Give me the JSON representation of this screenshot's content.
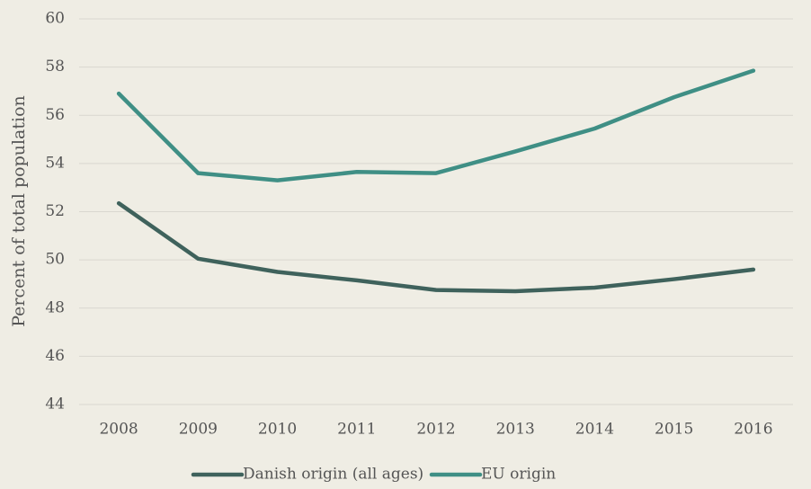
{
  "chart_data": {
    "type": "line",
    "y_label": "Percent of total population",
    "categories": [
      "2008",
      "2009",
      "2010",
      "2011",
      "2012",
      "2013",
      "2014",
      "2015",
      "2016"
    ],
    "series": [
      {
        "name": "Danish origin (all ages)",
        "color": "#3f625c",
        "values": [
          52.35,
          50.05,
          49.5,
          49.15,
          48.75,
          48.7,
          48.85,
          49.2,
          49.6
        ]
      },
      {
        "name": "EU origin",
        "color": "#3f8f85",
        "values": [
          56.9,
          53.6,
          53.3,
          53.65,
          53.6,
          54.5,
          55.45,
          56.75,
          57.85
        ]
      }
    ],
    "ylim": [
      44,
      60
    ],
    "yticks": [
      44,
      46,
      48,
      50,
      52,
      54,
      56,
      58,
      60
    ],
    "grid": true,
    "legend": "bottom"
  }
}
